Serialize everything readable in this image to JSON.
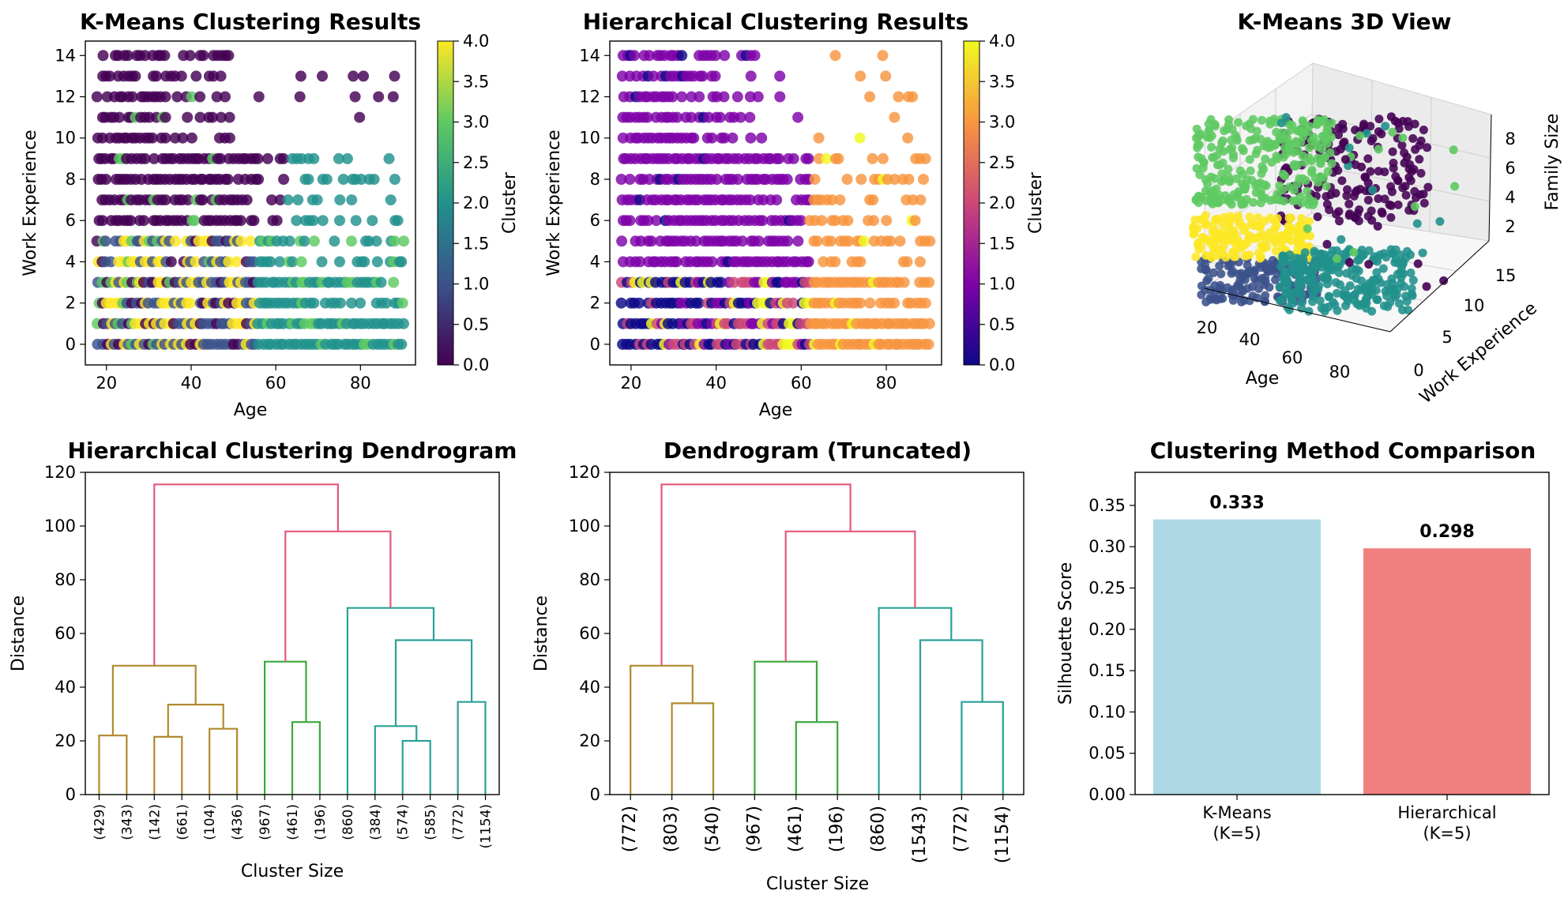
{
  "colors": {
    "viridis": [
      "#440154",
      "#3b528b",
      "#21918c",
      "#5ec962",
      "#fde725"
    ],
    "plasma": [
      "#0d0887",
      "#7e03a8",
      "#cc4778",
      "#f89540",
      "#f0f921"
    ],
    "dendro_link": "#e4587a",
    "dendro_c1": "#b08a2e",
    "dendro_c2": "#3aa83a",
    "dendro_c3": "#2aa198",
    "bar_kmeans": "#add8e6",
    "bar_hier": "#f08080"
  },
  "chart_data": [
    {
      "type": "scatter",
      "title": "K-Means Clustering Results",
      "xlabel": "Age",
      "ylabel": "Work Experience",
      "xlim": [
        15,
        93
      ],
      "ylim": [
        -1,
        14.7
      ],
      "xticks": [
        "20",
        "40",
        "60",
        "80"
      ],
      "xtick_values": [
        20,
        40,
        60,
        80
      ],
      "yticks": [
        "0",
        "2",
        "4",
        "6",
        "8",
        "10",
        "12",
        "14"
      ],
      "ytick_values": [
        0,
        2,
        4,
        6,
        8,
        10,
        12,
        14
      ],
      "colorbar": {
        "label": "Cluster",
        "ticks": [
          "0.0",
          "0.5",
          "1.0",
          "1.5",
          "2.0",
          "2.5",
          "3.0",
          "3.5",
          "4.0"
        ],
        "colormap": "viridis",
        "range": [
          0,
          4
        ]
      },
      "clusters": [
        {
          "id": 0,
          "region": "work experience 6–14, all ages; 0–5 scattered"
        },
        {
          "id": 1,
          "region": "ages 18–55, work experience 0–5"
        },
        {
          "id": 2,
          "region": "ages 55–90, work experience 0–9"
        },
        {
          "id": 3,
          "region": "mixed ages 18–55"
        },
        {
          "id": 4,
          "region": "ages 18–45, work experience 0–5"
        }
      ]
    },
    {
      "type": "scatter",
      "title": "Hierarchical Clustering Results",
      "xlabel": "Age",
      "ylabel": "Work Experience",
      "xlim": [
        15,
        93
      ],
      "ylim": [
        -1,
        14.7
      ],
      "xticks": [
        "20",
        "40",
        "60",
        "80"
      ],
      "xtick_values": [
        20,
        40,
        60,
        80
      ],
      "yticks": [
        "0",
        "2",
        "4",
        "6",
        "8",
        "10",
        "12",
        "14"
      ],
      "ytick_values": [
        0,
        2,
        4,
        6,
        8,
        10,
        12,
        14
      ],
      "colorbar": {
        "label": "Cluster",
        "ticks": [
          "0.0",
          "0.5",
          "1.0",
          "1.5",
          "2.0",
          "2.5",
          "3.0",
          "3.5",
          "4.0"
        ],
        "colormap": "plasma",
        "range": [
          0,
          4
        ]
      },
      "clusters": [
        {
          "id": 0,
          "region": "ages 18–60, work experience 0–3"
        },
        {
          "id": 1,
          "region": "work experience 4–14, ages 18–90"
        },
        {
          "id": 2,
          "region": "ages 40–70, work experience 0–2"
        },
        {
          "id": 3,
          "region": "ages 62–90, work experience 0–9"
        },
        {
          "id": 4,
          "region": "ages 18–70 scattered, work experience 0–2"
        }
      ]
    },
    {
      "type": "scatter3d",
      "title": "K-Means 3D View",
      "xlabel": "Age",
      "ylabel": "Work Experience",
      "zlabel": "Family Size",
      "xticks": [
        "20",
        "40",
        "60",
        "80"
      ],
      "yticks": [
        "0",
        "5",
        "10",
        "15"
      ],
      "zticks": [
        "2",
        "4",
        "6",
        "8"
      ]
    },
    {
      "type": "dendrogram",
      "title": "Hierarchical Clustering Dendrogram",
      "xlabel": "Cluster Size",
      "ylabel": "Distance",
      "ylim": [
        0,
        120
      ],
      "yticks": [
        "0",
        "20",
        "40",
        "60",
        "80",
        "100",
        "120"
      ],
      "leaves": [
        "(429)",
        "(343)",
        "(142)",
        "(661)",
        "(104)",
        "(436)",
        "(967)",
        "(461)",
        "(196)",
        "(860)",
        "(384)",
        "(574)",
        "(585)",
        "(772)",
        "(1154)"
      ],
      "links": [
        {
          "a": 0,
          "b": 1,
          "h": 22,
          "c": "c1"
        },
        {
          "a": 2,
          "b": 3,
          "h": 21.5,
          "c": "c1"
        },
        {
          "a": 4,
          "b": 5,
          "h": 24.5,
          "c": "c1"
        },
        {
          "a": 16,
          "b": 17,
          "h": 33.5,
          "c": "c1"
        },
        {
          "a": 15,
          "b": 18,
          "h": 48,
          "c": "c1"
        },
        {
          "a": 7,
          "b": 8,
          "h": 27,
          "c": "c2"
        },
        {
          "a": 6,
          "b": 20,
          "h": 49.5,
          "c": "c2"
        },
        {
          "a": 11,
          "b": 12,
          "h": 20,
          "c": "c3"
        },
        {
          "a": 10,
          "b": 22,
          "h": 25.5,
          "c": "c3"
        },
        {
          "a": 13,
          "b": 14,
          "h": 34.5,
          "c": "c3"
        },
        {
          "a": 23,
          "b": 24,
          "h": 57.5,
          "c": "c3"
        },
        {
          "a": 9,
          "b": 25,
          "h": 69.5,
          "c": "c3"
        },
        {
          "a": 21,
          "b": 26,
          "h": 98,
          "c": "link"
        },
        {
          "a": 19,
          "b": 27,
          "h": 115.5,
          "c": "link"
        }
      ]
    },
    {
      "type": "dendrogram",
      "title": "Dendrogram (Truncated)",
      "xlabel": "Cluster Size",
      "ylabel": "Distance",
      "ylim": [
        0,
        120
      ],
      "yticks": [
        "0",
        "20",
        "40",
        "60",
        "80",
        "100",
        "120"
      ],
      "leaves": [
        "(772)",
        "(803)",
        "(540)",
        "(967)",
        "(461)",
        "(196)",
        "(860)",
        "(1543)",
        "(772)",
        "(1154)"
      ],
      "links": [
        {
          "a": 1,
          "b": 2,
          "h": 34,
          "c": "c1"
        },
        {
          "a": 0,
          "b": 10,
          "h": 48,
          "c": "c1"
        },
        {
          "a": 4,
          "b": 5,
          "h": 27,
          "c": "c2"
        },
        {
          "a": 3,
          "b": 12,
          "h": 49.5,
          "c": "c2"
        },
        {
          "a": 8,
          "b": 9,
          "h": 34.5,
          "c": "c3"
        },
        {
          "a": 7,
          "b": 14,
          "h": 57.5,
          "c": "c3"
        },
        {
          "a": 6,
          "b": 15,
          "h": 69.5,
          "c": "c3"
        },
        {
          "a": 13,
          "b": 16,
          "h": 98,
          "c": "link"
        },
        {
          "a": 11,
          "b": 17,
          "h": 115.5,
          "c": "link"
        }
      ]
    },
    {
      "type": "bar",
      "title": "Clustering Method Comparison",
      "xlabel": "",
      "ylabel": "Silhouette Score",
      "categories": [
        "K-Means\n(K=5)",
        "Hierarchical\n(K=5)"
      ],
      "values": [
        0.333,
        0.298
      ],
      "value_labels": [
        "0.333",
        "0.298"
      ],
      "ylim": [
        0,
        0.39
      ],
      "yticks": [
        "0.00",
        "0.05",
        "0.10",
        "0.15",
        "0.20",
        "0.25",
        "0.30",
        "0.35"
      ],
      "ytick_values": [
        0,
        0.05,
        0.1,
        0.15,
        0.2,
        0.25,
        0.3,
        0.35
      ]
    }
  ]
}
